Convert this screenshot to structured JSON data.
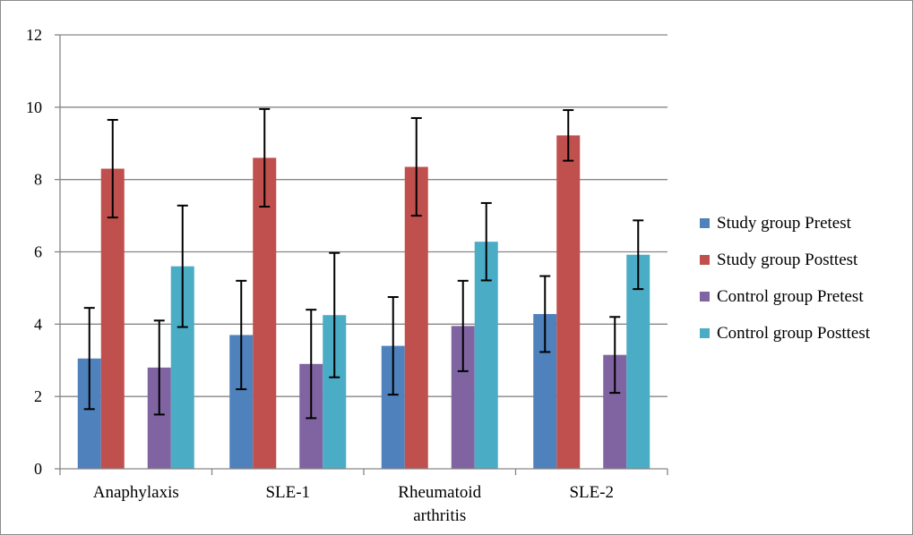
{
  "chart_data": {
    "type": "bar",
    "title": "",
    "xlabel": "",
    "ylabel": "",
    "ylim": [
      0,
      12
    ],
    "yticks": [
      "0",
      "2",
      "4",
      "6",
      "8",
      "10",
      "12"
    ],
    "grid": true,
    "legend_position": "right",
    "categories": [
      [
        "Anaphylaxis"
      ],
      [
        "SLE-1"
      ],
      [
        "Rheumatoid",
        "arthritis"
      ],
      [
        "SLE-2"
      ]
    ],
    "series": [
      {
        "name": "Study group Pretest",
        "color": "#4f81bd",
        "values": [
          3.05,
          3.7,
          3.4,
          4.28
        ],
        "errors": [
          1.4,
          1.5,
          1.35,
          1.05
        ]
      },
      {
        "name": "Study group Posttest",
        "color": "#c0504d",
        "values": [
          8.3,
          8.6,
          8.35,
          9.22
        ],
        "errors": [
          1.35,
          1.35,
          1.35,
          0.7
        ]
      },
      {
        "name": "Control group Pretest",
        "color": "#8064a2",
        "values": [
          2.8,
          2.9,
          3.95,
          3.15
        ],
        "errors": [
          1.3,
          1.5,
          1.25,
          1.05
        ]
      },
      {
        "name": "Control group Posttest",
        "color": "#4bacc6",
        "values": [
          5.6,
          4.25,
          6.28,
          5.92
        ],
        "errors": [
          1.68,
          1.72,
          1.07,
          0.95
        ]
      }
    ]
  }
}
